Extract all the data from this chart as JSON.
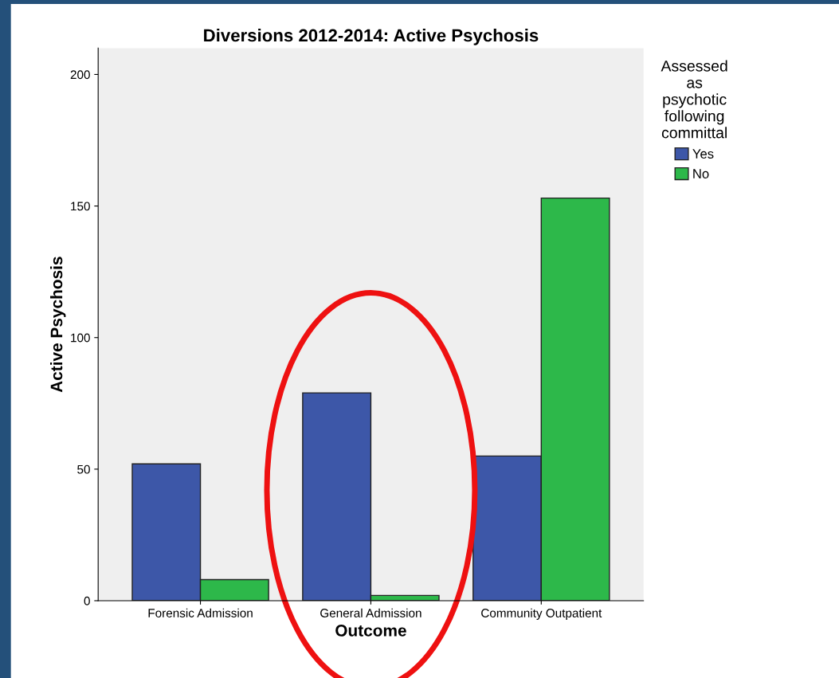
{
  "chart_data": {
    "type": "bar",
    "title": "Diversions 2012-2014: Active Psychosis",
    "xlabel": "Outcome",
    "ylabel": "Active Psychosis",
    "legend_title": "Assessed\nas\npsychotic\nfollowing\ncommittal",
    "categories": [
      "Forensic Admission",
      "General Admission",
      "Community Outpatient"
    ],
    "series": [
      {
        "name": "Yes",
        "color": "#3d57a8",
        "values": [
          52,
          79,
          55
        ]
      },
      {
        "name": "No",
        "color": "#2db84a",
        "values": [
          8,
          2,
          153
        ]
      }
    ],
    "ylim": [
      0,
      210
    ],
    "yticks": [
      0,
      50,
      100,
      150,
      200
    ],
    "grid": false,
    "legend": "top right"
  }
}
